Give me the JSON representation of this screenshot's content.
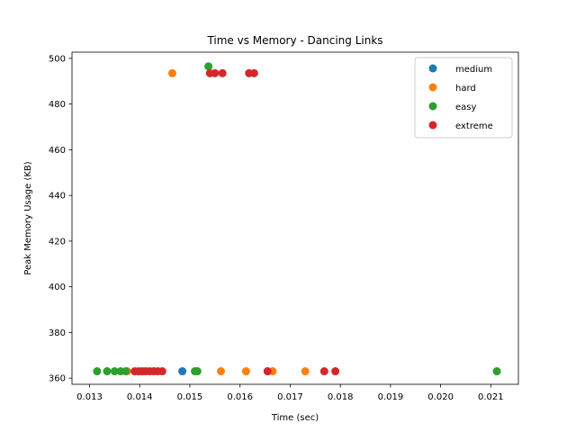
{
  "chart_data": {
    "type": "scatter",
    "title": "Time vs Memory - Dancing Links",
    "xlabel": "Time (sec)",
    "ylabel": "Peak Memory Usage (KB)",
    "xlim": [
      0.01265,
      0.02155
    ],
    "ylim": [
      357.3,
      502.7
    ],
    "xticks": [
      0.013,
      0.014,
      0.015,
      0.016,
      0.017,
      0.018,
      0.019,
      0.02,
      0.021
    ],
    "xtick_labels": [
      "0.013",
      "0.014",
      "0.015",
      "0.016",
      "0.017",
      "0.018",
      "0.019",
      "0.020",
      "0.021"
    ],
    "yticks": [
      360,
      380,
      400,
      420,
      440,
      460,
      480,
      500
    ],
    "ytick_labels": [
      "360",
      "380",
      "400",
      "420",
      "440",
      "460",
      "480",
      "500"
    ],
    "grid": false,
    "legend_position": "top-right",
    "series": [
      {
        "name": "medium",
        "color": "#1f77b4",
        "points": [
          {
            "x": 0.01485,
            "y": 363
          },
          {
            "x": 0.01655,
            "y": 363
          }
        ]
      },
      {
        "name": "hard",
        "color": "#ff7f0e",
        "points": [
          {
            "x": 0.01465,
            "y": 493.5
          },
          {
            "x": 0.01375,
            "y": 363
          },
          {
            "x": 0.01562,
            "y": 363
          },
          {
            "x": 0.01612,
            "y": 363
          },
          {
            "x": 0.01665,
            "y": 363
          },
          {
            "x": 0.0173,
            "y": 363
          }
        ]
      },
      {
        "name": "easy",
        "color": "#2ca02c",
        "points": [
          {
            "x": 0.01537,
            "y": 496.5
          },
          {
            "x": 0.01315,
            "y": 363
          },
          {
            "x": 0.01335,
            "y": 363
          },
          {
            "x": 0.0135,
            "y": 363
          },
          {
            "x": 0.01362,
            "y": 363
          },
          {
            "x": 0.01372,
            "y": 363
          },
          {
            "x": 0.0151,
            "y": 363
          },
          {
            "x": 0.01515,
            "y": 363
          },
          {
            "x": 0.02112,
            "y": 363
          }
        ]
      },
      {
        "name": "extreme",
        "color": "#d62728",
        "points": [
          {
            "x": 0.0154,
            "y": 493.5
          },
          {
            "x": 0.0155,
            "y": 493.5
          },
          {
            "x": 0.01565,
            "y": 493.5
          },
          {
            "x": 0.01618,
            "y": 493.5
          },
          {
            "x": 0.01628,
            "y": 493.5
          },
          {
            "x": 0.0139,
            "y": 363
          },
          {
            "x": 0.01398,
            "y": 363
          },
          {
            "x": 0.01405,
            "y": 363
          },
          {
            "x": 0.01412,
            "y": 363
          },
          {
            "x": 0.0142,
            "y": 363
          },
          {
            "x": 0.01428,
            "y": 363
          },
          {
            "x": 0.01436,
            "y": 363
          },
          {
            "x": 0.01445,
            "y": 363
          },
          {
            "x": 0.01655,
            "y": 363
          },
          {
            "x": 0.01768,
            "y": 363
          },
          {
            "x": 0.0179,
            "y": 363
          }
        ]
      }
    ]
  }
}
